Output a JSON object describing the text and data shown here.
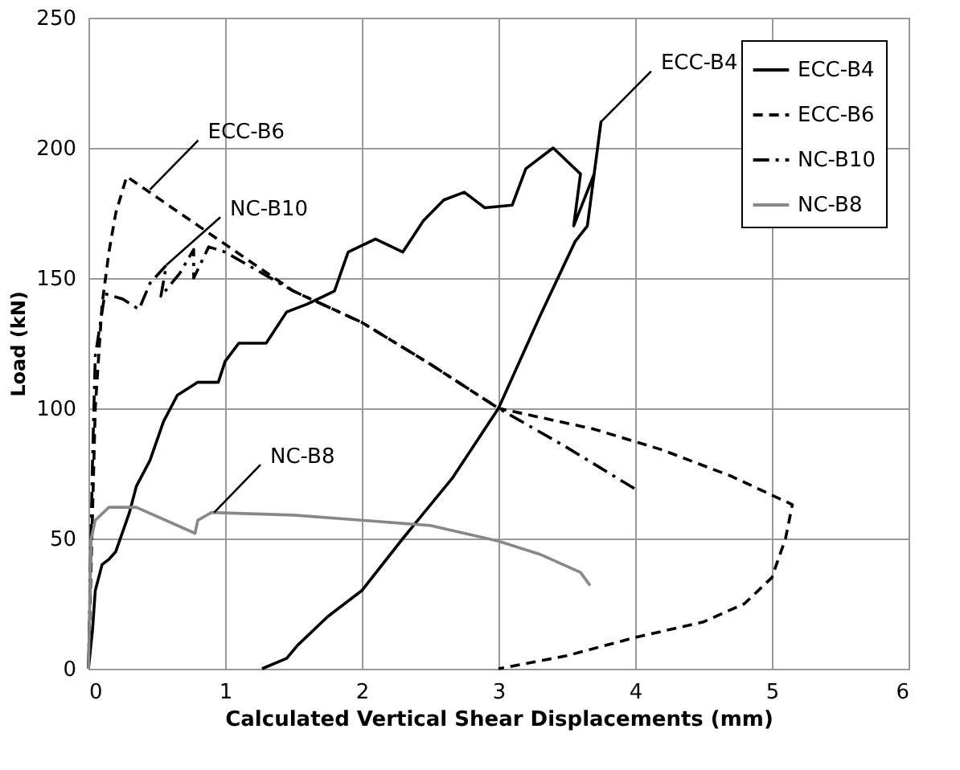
{
  "chart_data": {
    "type": "line",
    "xlabel": "Calculated Vertical Shear Displacements (mm)",
    "ylabel": "Load (kN)",
    "xlim": [
      0,
      6
    ],
    "ylim": [
      0,
      250
    ],
    "xticks": [
      0,
      1,
      2,
      3,
      4,
      5,
      6
    ],
    "yticks": [
      0,
      50,
      100,
      150,
      200,
      250
    ],
    "grid": true,
    "legend": "top right",
    "marker": "none",
    "series": [
      {
        "name": "ECC-B4",
        "color": "#000000",
        "line_style": "solid",
        "x": [
          0,
          0.03,
          0.05,
          0.1,
          0.15,
          0.2,
          0.3,
          0.35,
          0.45,
          0.55,
          0.65,
          0.8,
          0.95,
          1.0,
          1.1,
          1.3,
          1.45,
          1.6,
          1.8,
          1.9,
          2.1,
          2.3,
          2.45,
          2.6,
          2.75,
          2.9,
          3.1,
          3.2,
          3.4,
          3.5,
          3.6,
          3.55,
          3.7,
          3.75,
          3.65,
          3.56,
          3.3,
          3.0,
          2.66,
          2.3,
          2.0,
          1.75,
          1.53,
          1.45,
          1.27
        ],
        "values": [
          0,
          15,
          30,
          40,
          42,
          45,
          60,
          70,
          80,
          95,
          105,
          110,
          110,
          118,
          125,
          125,
          137,
          140,
          145,
          160,
          165,
          160,
          172,
          180,
          183,
          177,
          178,
          192,
          200,
          195,
          190,
          170,
          190,
          210,
          170,
          164,
          135,
          100,
          73,
          50,
          30,
          20,
          9,
          4,
          0
        ]
      },
      {
        "name": "ECC-B6",
        "color": "#000000",
        "line_style": "dashed",
        "x": [
          0,
          0.03,
          0.05,
          0.1,
          0.15,
          0.2,
          0.28,
          1.0,
          1.5,
          2.0,
          2.5,
          3.0,
          3.7,
          4.2,
          4.7,
          5.15,
          5.1,
          5.0,
          4.8,
          4.5,
          4.0,
          3.5,
          3.0
        ],
        "values": [
          0,
          60,
          100,
          140,
          160,
          175,
          189,
          163,
          145,
          133,
          117,
          100,
          92,
          84,
          74,
          63,
          50,
          35,
          25,
          18,
          12,
          5,
          0
        ]
      },
      {
        "name": "NC-B10",
        "color": "#000000",
        "line_style": "dashdot",
        "x": [
          0,
          0.03,
          0.05,
          0.12,
          0.25,
          0.37,
          0.45,
          0.57,
          0.53,
          0.67,
          0.77,
          0.77,
          0.88,
          1.0,
          1.5,
          2.0,
          2.5,
          3.0,
          3.5,
          4.0
        ],
        "values": [
          0,
          80,
          120,
          144,
          142,
          138,
          148,
          155,
          143,
          152,
          161,
          150,
          162,
          160,
          145,
          133,
          117,
          100,
          85,
          69
        ]
      },
      {
        "name": "NC-B8",
        "color": "#888888",
        "line_style": "solid",
        "x": [
          0,
          0.02,
          0.05,
          0.15,
          0.35,
          0.78,
          0.8,
          0.9,
          1.5,
          2.0,
          2.5,
          3.0,
          3.3,
          3.6,
          3.67
        ],
        "values": [
          0,
          50,
          57,
          62,
          62,
          52,
          57,
          60,
          59,
          57,
          55,
          49,
          44,
          37,
          32
        ]
      }
    ],
    "annotations": [
      {
        "text": "ECC-B6",
        "x": 0.45,
        "y": 184
      },
      {
        "text": "NC-B10",
        "x": 0.57,
        "y": 155
      },
      {
        "text": "ECC-B4",
        "x": 3.75,
        "y": 210
      },
      {
        "text": "NC-B8",
        "x": 0.92,
        "y": 60
      }
    ]
  }
}
